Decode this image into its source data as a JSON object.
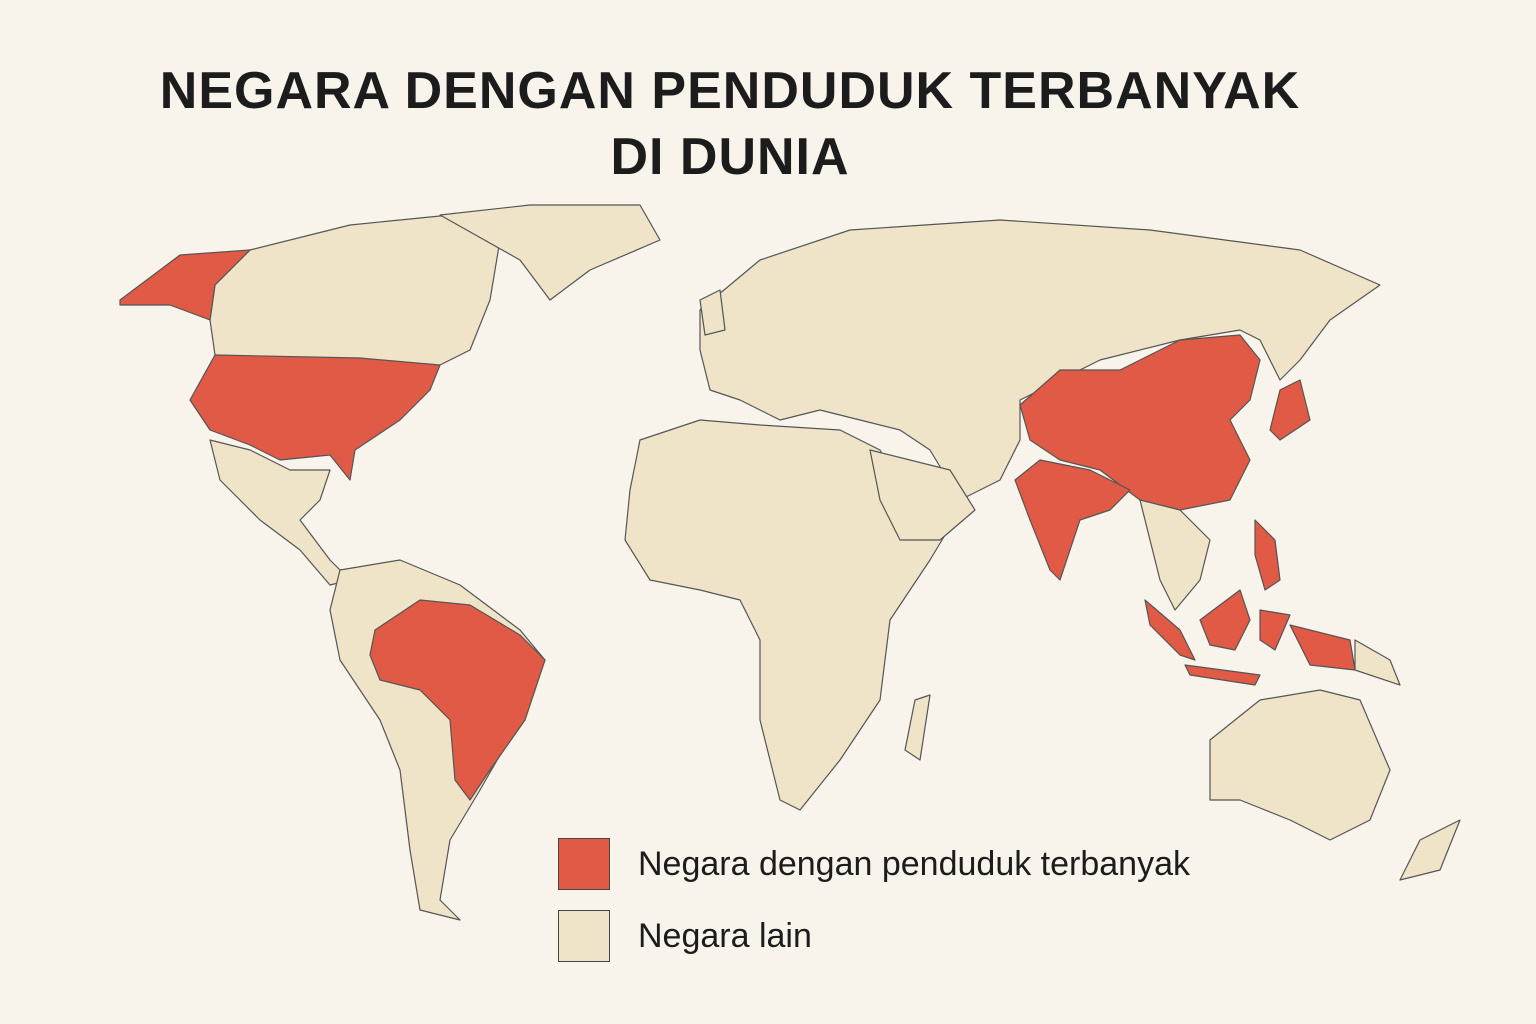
{
  "title": {
    "line1": "NEGARA DENGAN PENDUDUK TERBANYAK",
    "line2": "DI DUNIA"
  },
  "colors": {
    "background": "#f8f4ec",
    "highlight": "#e05a45",
    "other": "#efe4c8",
    "border": "#555555"
  },
  "highlighted_regions": [
    "united-states",
    "brazil",
    "china",
    "india",
    "japan",
    "philippines",
    "indonesia"
  ],
  "legend": [
    {
      "label": "Negara dengan penduduk terbanyak",
      "color": "#e05a45"
    },
    {
      "label": "Negara lain",
      "color": "#efe4c8"
    }
  ]
}
